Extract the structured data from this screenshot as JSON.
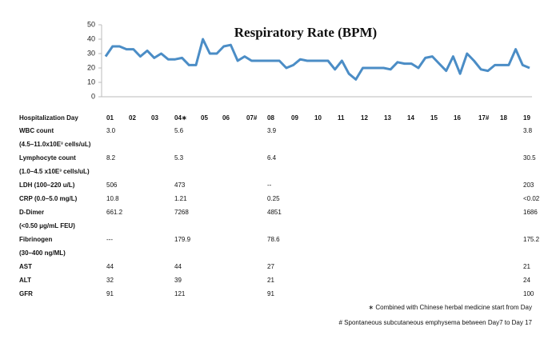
{
  "chart_data": {
    "type": "line",
    "title": "Respiratory Rate (BPM)",
    "color": "#4b8dc6",
    "values": [
      28,
      35,
      35,
      33,
      33,
      28,
      32,
      27,
      30,
      26,
      26,
      27,
      22,
      22,
      40,
      30,
      30,
      35,
      36,
      25,
      28,
      25,
      25,
      25,
      25,
      25,
      20,
      22,
      26,
      25,
      25,
      25,
      25,
      19,
      25,
      16,
      12,
      20,
      20,
      20,
      20,
      19,
      24,
      23,
      23,
      20,
      27,
      28,
      23,
      18,
      28,
      16,
      30,
      25,
      19,
      18,
      22,
      22,
      22,
      33,
      22,
      20
    ],
    "ylim": [
      0,
      50
    ],
    "yticks": [
      0,
      10,
      20,
      30,
      40,
      50
    ],
    "grid": false
  },
  "table": {
    "header": [
      "Hospitalization Day",
      "01",
      "02",
      "03",
      "04∗",
      "05",
      "06",
      "07#",
      "08",
      "09",
      "10",
      "11",
      "12",
      "13",
      "14",
      "15",
      "16",
      "17#",
      "18",
      "19"
    ],
    "rows": [
      {
        "label": "WBC count",
        "sublabel": "(4.5–11.0x10E³ cells/uL)",
        "values": [
          "3.0",
          "5.6",
          "3.9",
          "3.8"
        ]
      },
      {
        "label": "Lymphocyte count",
        "sublabel": "(1.0–4.5 x10E³ cells/uL)",
        "values": [
          "8.2",
          "5.3",
          "6.4",
          "30.5"
        ]
      },
      {
        "label": "LDH (100–220 u/L)",
        "values": [
          "506",
          "473",
          "--",
          "203"
        ]
      },
      {
        "label": "CRP (0.0–5.0 mg/L)",
        "values": [
          "10.8",
          "1.21",
          "0.25",
          "<0.02"
        ]
      },
      {
        "label": "D-Dimer",
        "sublabel": "(<0.50 μg/mL FEU)",
        "values": [
          "661.2",
          "7268",
          "4851",
          "1686"
        ]
      },
      {
        "label": "Fibrinogen",
        "sublabel": "(30–400 ng/ML)",
        "values": [
          "---",
          "179.9",
          "78.6",
          "175.2"
        ]
      },
      {
        "label": "AST",
        "values": [
          "44",
          "44",
          "27",
          "21"
        ]
      },
      {
        "label": "ALT",
        "values": [
          "32",
          "39",
          "21",
          "24"
        ]
      },
      {
        "label": "GFR",
        "values": [
          "91",
          "121",
          "91",
          "100"
        ]
      }
    ]
  },
  "footnotes": [
    "∗  Combined with Chinese herbal medicine start from Day",
    "# Spontaneous subcutaneous emphysema between Day7 to Day 17"
  ]
}
